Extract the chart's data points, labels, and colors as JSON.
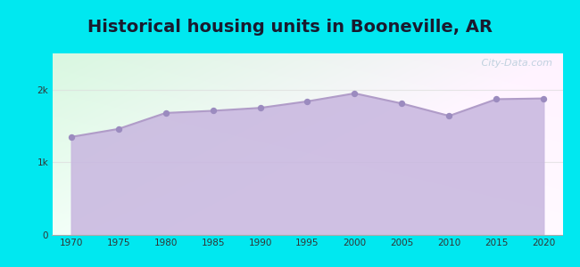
{
  "title": "Historical housing units in Booneville, AR",
  "title_fontsize": 14,
  "title_fontweight": "bold",
  "title_color": "#1a1a2e",
  "years": [
    1970,
    1975,
    1980,
    1985,
    1990,
    1995,
    2000,
    2005,
    2010,
    2015,
    2020
  ],
  "values": [
    1350,
    1460,
    1680,
    1710,
    1750,
    1840,
    1950,
    1810,
    1640,
    1870,
    1880
  ],
  "line_color": "#b09cc8",
  "fill_color": "#c9b8e0",
  "fill_alpha": 0.88,
  "marker_color": "#9b8bbf",
  "marker_size": 28,
  "background_outer": "#00e8f0",
  "bg_top_left": "#d8f5e0",
  "bg_top_right": "#f8f8ff",
  "bg_bottom": "#c8e8f8",
  "yticks": [
    0,
    1000,
    2000
  ],
  "ytick_labels": [
    "0",
    "1k",
    "2k"
  ],
  "ylim": [
    0,
    2500
  ],
  "xlim": [
    1968,
    2022
  ],
  "xticks": [
    1970,
    1975,
    1980,
    1985,
    1990,
    1995,
    2000,
    2005,
    2010,
    2015,
    2020
  ],
  "watermark_text": " City-Data.com",
  "watermark_color": "#99bbcc",
  "watermark_alpha": 0.6,
  "grid_color": "#dddddd",
  "grid_alpha": 0.7
}
